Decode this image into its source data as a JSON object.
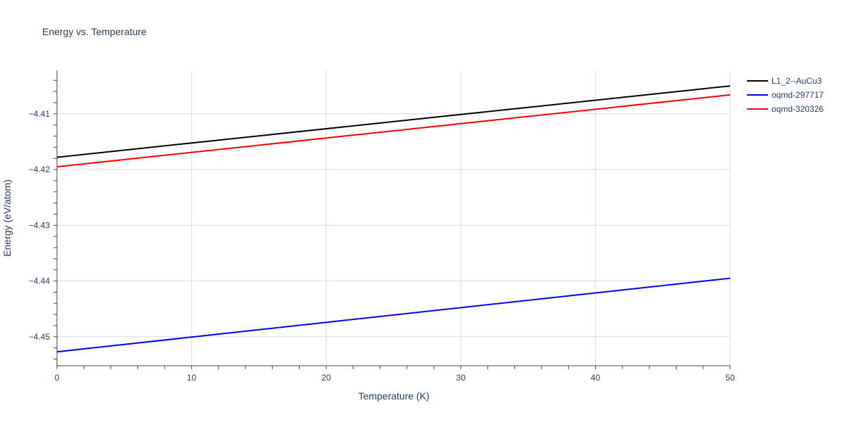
{
  "chart_data": {
    "type": "line",
    "title": "Energy vs. Temperature",
    "xlabel": "Temperature (K)",
    "ylabel": "Energy (eV/atom)",
    "xlim": [
      0,
      50
    ],
    "ylim": [
      -4.4552,
      -4.4022
    ],
    "x_ticks": [
      0,
      10,
      20,
      30,
      40,
      50
    ],
    "x_tick_labels": [
      "0",
      "10",
      "20",
      "30",
      "40",
      "50"
    ],
    "y_ticks": [
      -4.45,
      -4.44,
      -4.43,
      -4.42,
      -4.41
    ],
    "y_tick_labels": [
      "−4.45",
      "−4.44",
      "−4.43",
      "−4.42",
      "−4.41"
    ],
    "grid": true,
    "legend_position": "top-right",
    "series": [
      {
        "name": "L1_2--AuCu3",
        "color": "#000000",
        "x": [
          0,
          50
        ],
        "y": [
          -4.4178,
          -4.405
        ]
      },
      {
        "name": "oqmd-297717",
        "color": "#0000ff",
        "x": [
          0,
          50
        ],
        "y": [
          -4.4527,
          -4.4395
        ]
      },
      {
        "name": "oqmd-320326",
        "color": "#ff0000",
        "x": [
          0,
          50
        ],
        "y": [
          -4.4195,
          -4.4066
        ]
      }
    ]
  }
}
